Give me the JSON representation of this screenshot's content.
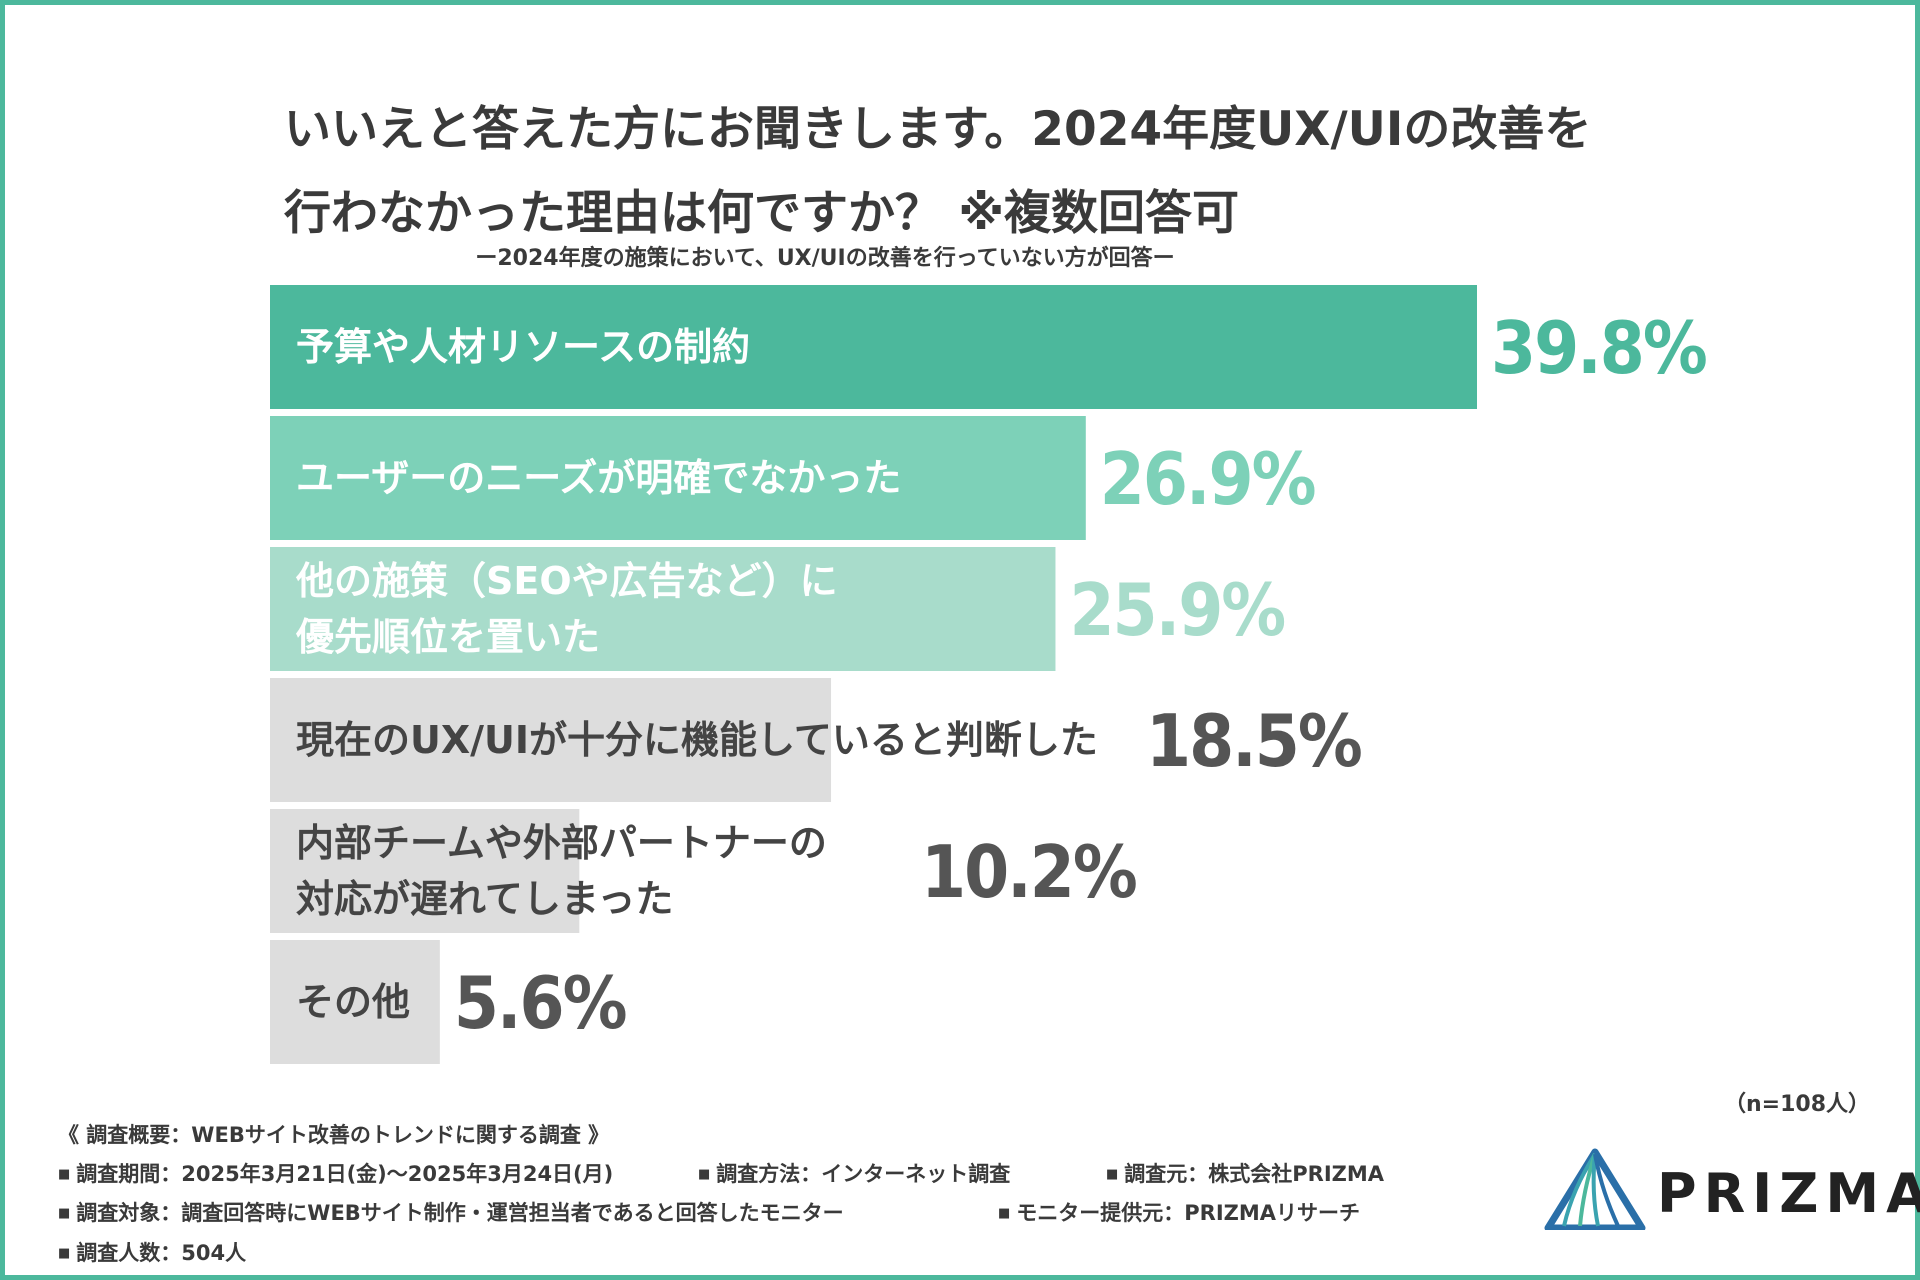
{
  "title": {
    "line1": "いいえと答えた方にお聞きします。2024年度UX/UIの改善を",
    "line2": "行わなかった理由は何ですか？ ※複数回答可"
  },
  "subtitle": "ー2024年度の施策において、UX/UIの改善を行っていない方が回答ー",
  "chart_data": {
    "type": "bar",
    "orientation": "horizontal",
    "title": "いいえと答えた方にお聞きします。2024年度UX/UIの改善を行わなかった理由は何ですか？ ※複数回答可",
    "subtitle": "ー2024年度の施策において、UX/UIの改善を行っていない方が回答ー",
    "categories": [
      [
        "予算や人材リソースの制約"
      ],
      [
        "ユーザーのニーズが明確でなかった"
      ],
      [
        "他の施策（SEOや広告など）に",
        "優先順位を置いた"
      ],
      [
        "現在のUX/UIが十分に機能していると判断した"
      ],
      [
        "内部チームや外部パートナーの",
        "対応が遅れてしまった"
      ],
      [
        "その他"
      ]
    ],
    "values": [
      39.8,
      26.9,
      25.9,
      18.5,
      10.2,
      5.6
    ],
    "value_labels": [
      "39.8%",
      "26.9%",
      "25.9%",
      "18.5%",
      "10.2%",
      "5.6%"
    ],
    "unit": "%",
    "xlim": [
      0,
      100
    ],
    "bar_colors": [
      "#4cb89c",
      "#7dd1b8",
      "#a8dccb",
      "#dddddd",
      "#dddddd",
      "#dddddd"
    ],
    "label_colors": [
      "#ffffff",
      "#ffffff",
      "#ffffff",
      "#444444",
      "#444444",
      "#444444"
    ],
    "value_colors": [
      "#4cb89c",
      "#7dd1b8",
      "#a8dccb",
      "#555555",
      "#555555",
      "#555555"
    ],
    "grid": false,
    "legend": "none"
  },
  "sample_size": "（n=108人）",
  "footer": {
    "heading": "《 調査概要：WEBサイト改善のトレンドに関する調査 》",
    "items": [
      [
        "調査期間：2025年3月21日(金)〜2025年3月24日(月)",
        "調査方法：インターネット調査",
        "調査元：株式会社PRIZMA"
      ],
      [
        "調査対象：調査回答時にWEBサイト制作・運営担当者であると回答したモニター",
        "モニター提供元：PRIZMAリサーチ"
      ],
      [
        "調査人数：504人"
      ]
    ],
    "bullet": "■"
  },
  "logo": {
    "text": "PRIZMA",
    "colors": [
      "#2a6fa8",
      "#3aa3b0",
      "#4cb89c"
    ]
  }
}
